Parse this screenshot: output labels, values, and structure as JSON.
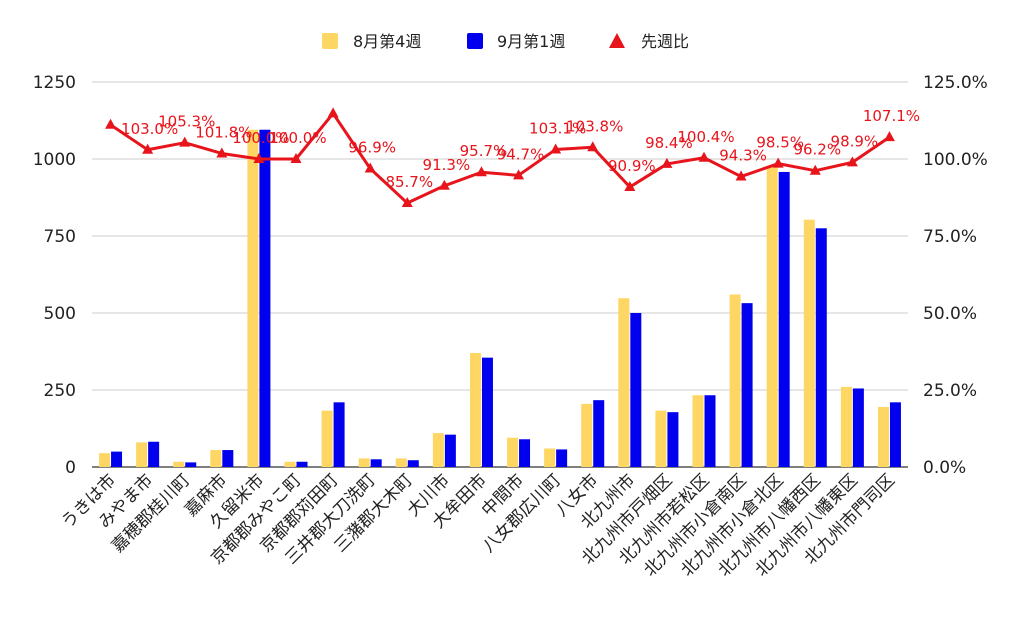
{
  "chart_data": {
    "type": "bar",
    "categories": [
      "うきは市",
      "みやま市",
      "嘉穂郡桂川町",
      "嘉麻市",
      "久留米市",
      "京都郡みやこ町",
      "京都郡苅田町",
      "三井郡大刀洗町",
      "三潴郡大木町",
      "大川市",
      "大牟田市",
      "中間市",
      "八女郡広川町",
      "八女市",
      "北九州市",
      "北九州市戸畑区",
      "北九州市若松区",
      "北九州市小倉南区",
      "北九州市小倉北区",
      "北九州市八幡西区",
      "北九州市八幡東区",
      "北九州市門司区"
    ],
    "series": [
      {
        "name": "8月第4週",
        "color": "#fdd663",
        "values": [
          45,
          80,
          17,
          55,
          1095,
          17,
          183,
          28,
          28,
          110,
          370,
          95,
          60,
          205,
          548,
          183,
          233,
          560,
          975,
          803,
          260,
          195
        ]
      },
      {
        "name": "9月第1週",
        "color": "#0000ee",
        "values": [
          50,
          82,
          15,
          55,
          1095,
          17,
          210,
          25,
          22,
          105,
          355,
          90,
          57,
          217,
          500,
          178,
          233,
          532,
          958,
          775,
          255,
          210
        ]
      }
    ],
    "line_series": {
      "name": "先週比",
      "color": "#e8141c",
      "values": [
        111.1,
        103.0,
        105.3,
        101.8,
        100.0,
        100.0,
        114.8,
        96.9,
        85.7,
        91.3,
        95.7,
        94.7,
        103.1,
        103.8,
        90.9,
        98.4,
        100.4,
        94.3,
        98.5,
        96.2,
        98.9,
        107.1
      ],
      "labels": [
        "",
        "103.0%",
        "105.3%",
        "101.8%",
        "100.0%",
        "100.0%",
        "",
        "96.9%",
        "85.7%",
        "91.3%",
        "95.7%",
        "94.7%",
        "103.1%",
        "103.8%",
        "90.9%",
        "98.4%",
        "100.4%",
        "94.3%",
        "98.5%",
        "96.2%",
        "98.9%",
        "107.1%"
      ]
    },
    "y_left": {
      "min": 0,
      "max": 1250,
      "ticks": [
        "0",
        "250",
        "500",
        "750",
        "1000",
        "1250"
      ]
    },
    "y_right": {
      "min": 0,
      "max": 125,
      "ticks": [
        "0.0%",
        "25.0%",
        "50.0%",
        "75.0%",
        "100.0%",
        "125.0%"
      ]
    },
    "legend_position": "top"
  }
}
